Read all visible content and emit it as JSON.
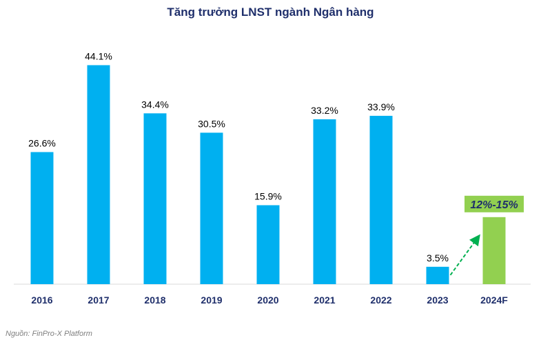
{
  "chart_data": {
    "type": "bar",
    "title": "Tăng trưởng LNST ngành Ngân hàng",
    "categories": [
      "2016",
      "2017",
      "2018",
      "2019",
      "2020",
      "2021",
      "2022",
      "2023",
      "2024F"
    ],
    "values": [
      26.6,
      44.1,
      34.4,
      30.5,
      15.9,
      33.2,
      33.9,
      3.5,
      13.5
    ],
    "data_labels": [
      "26.6%",
      "44.1%",
      "34.4%",
      "30.5%",
      "15.9%",
      "33.2%",
      "33.9%",
      "3.5%",
      "12%-15%"
    ],
    "forecast_range": [
      12,
      15
    ],
    "xlabel": "",
    "ylabel": "",
    "ylim": [
      0,
      45
    ],
    "grid": false,
    "colors": {
      "bar": "#00b0f0",
      "forecast_bar": "#92d050",
      "forecast_label_bg": "#92d050",
      "forecast_label_text": "#1f2f6b",
      "arrow": "#00b050",
      "axis_text": "#1f2f6b",
      "title": "#1f2f6b"
    }
  },
  "source_note": "Nguồn: FinPro-X Platform"
}
